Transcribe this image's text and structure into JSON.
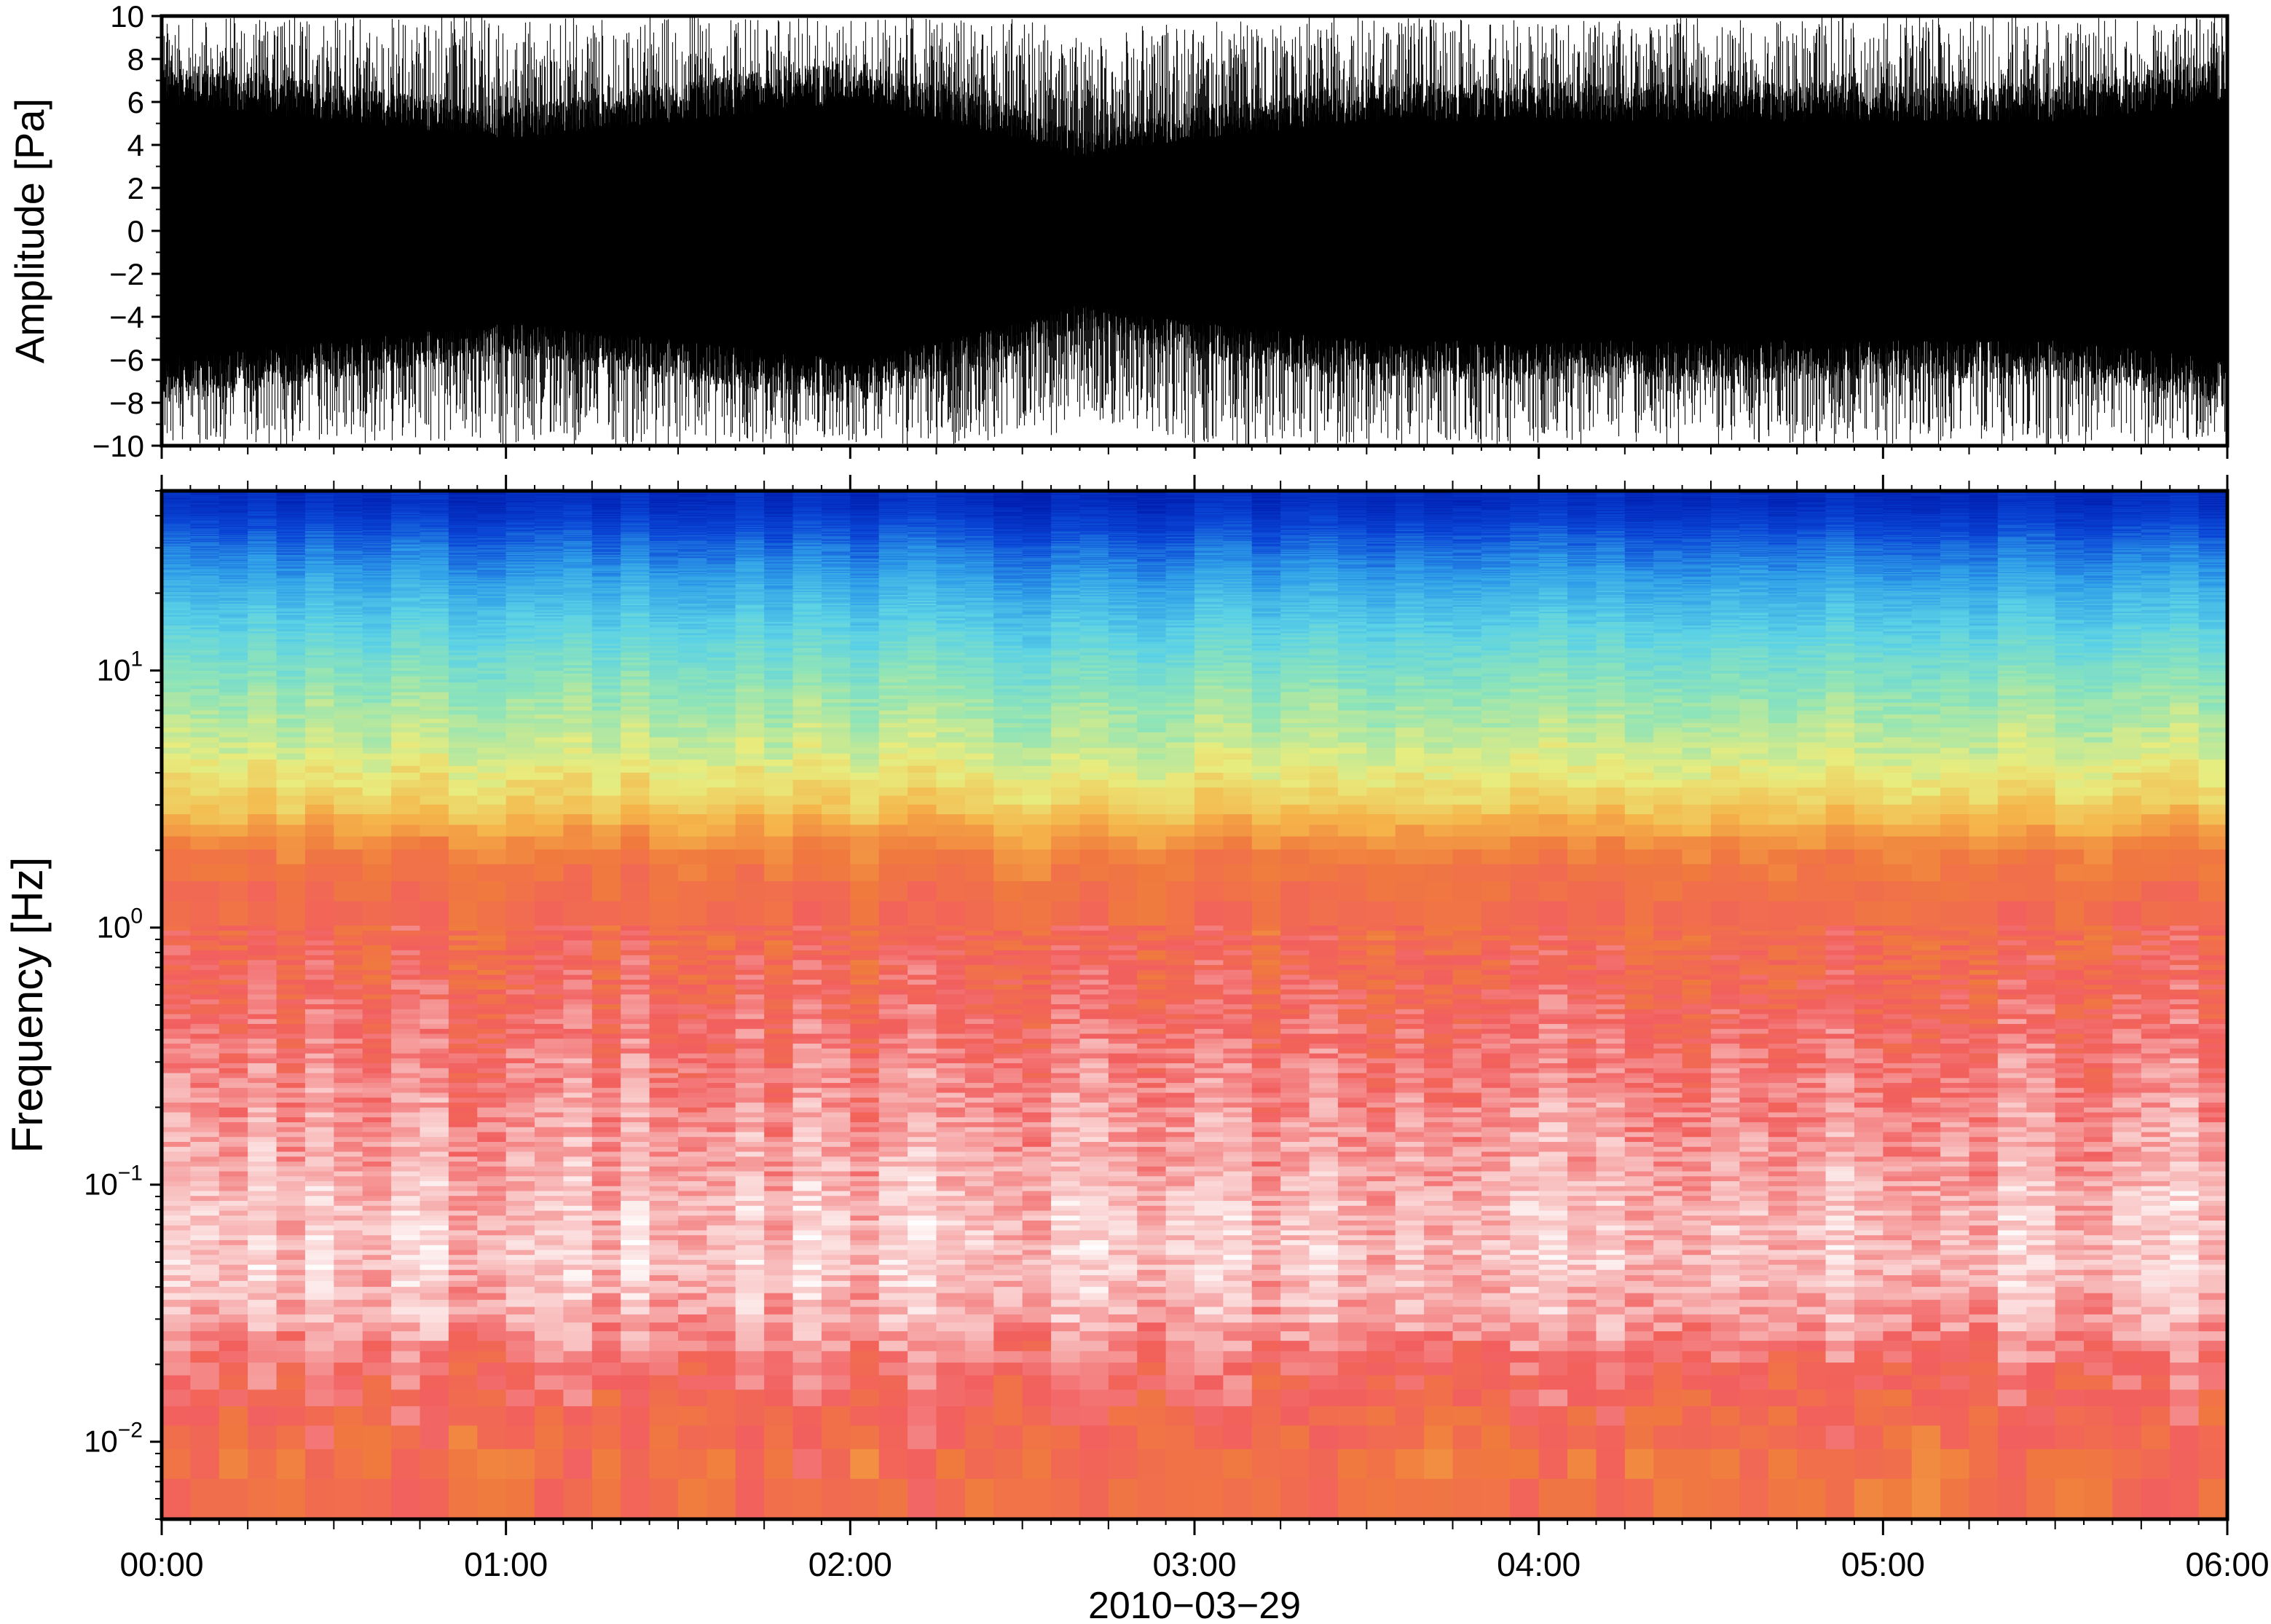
{
  "chart_data": [
    {
      "type": "line",
      "description_role": "waveform",
      "ylabel": "Amplitude [Pa]",
      "xlabel": "",
      "ylim": [
        -10,
        10
      ],
      "y_ticks": [
        10,
        8,
        6,
        4,
        2,
        0,
        -2,
        -4,
        -6,
        -8,
        -10
      ],
      "y_tick_labels": [
        "10",
        "8",
        "6",
        "4",
        "2",
        "0",
        "−2",
        "−4",
        "−6",
        "−8",
        "−10"
      ],
      "xlim_hours": [
        0,
        6
      ],
      "series": [
        {
          "color": "#000000",
          "envelope_x_hours": [
            0,
            0.5,
            1,
            1.5,
            2,
            2.5,
            2.67,
            3,
            3.5,
            4,
            4.5,
            5,
            5.5,
            6
          ],
          "envelope_upper": [
            10,
            10,
            10,
            10,
            10,
            10,
            9,
            10,
            10,
            10,
            10,
            10,
            10,
            10
          ],
          "envelope_lower": [
            -10,
            -10,
            -10,
            -10,
            -10,
            -10,
            -9,
            -10,
            -10,
            -10,
            -10,
            -10,
            -10,
            -10
          ],
          "dense_core_abs": [
            7,
            6,
            5,
            6,
            7,
            5,
            4,
            5,
            6,
            6,
            6,
            6,
            6,
            7
          ]
        }
      ],
      "grid": false
    },
    {
      "type": "heatmap",
      "description_role": "spectrogram",
      "ylabel": "Frequency [Hz]",
      "xlabel": "2010−03−29",
      "y_scale": "log",
      "ylim": [
        0.005,
        50
      ],
      "y_ticks": [
        {
          "value": 10,
          "base": "10",
          "exp": "1"
        },
        {
          "value": 1,
          "base": "10",
          "exp": "0"
        },
        {
          "value": 0.1,
          "base": "10",
          "exp": "−1"
        },
        {
          "value": 0.01,
          "base": "10",
          "exp": "−2"
        }
      ],
      "x_tick_labels": [
        "00:00",
        "01:00",
        "02:00",
        "03:00",
        "04:00",
        "05:00",
        "06:00"
      ],
      "x_ticks_hours": [
        0,
        1,
        2,
        3,
        4,
        5,
        6
      ],
      "colormap_stops": [
        "#ffffff",
        "#f8b8b8",
        "#f25f5f",
        "#f07a3e",
        "#f5b54a",
        "#e8ec7e",
        "#8fe4b8",
        "#5cd2e6",
        "#2f9fe8",
        "#0a45d6",
        "#001fb0"
      ],
      "level_profile": {
        "freq_hz": [
          0.005,
          0.008,
          0.012,
          0.02,
          0.03,
          0.05,
          0.08,
          0.15,
          0.3,
          0.6,
          1,
          1.5,
          2,
          3,
          5,
          8,
          12,
          20,
          30,
          45
        ],
        "level": [
          0.26,
          0.27,
          0.24,
          0.19,
          0.12,
          0.08,
          0.09,
          0.13,
          0.17,
          0.22,
          0.24,
          0.27,
          0.31,
          0.44,
          0.53,
          0.59,
          0.66,
          0.76,
          0.85,
          0.96
        ]
      },
      "grid": false
    }
  ]
}
